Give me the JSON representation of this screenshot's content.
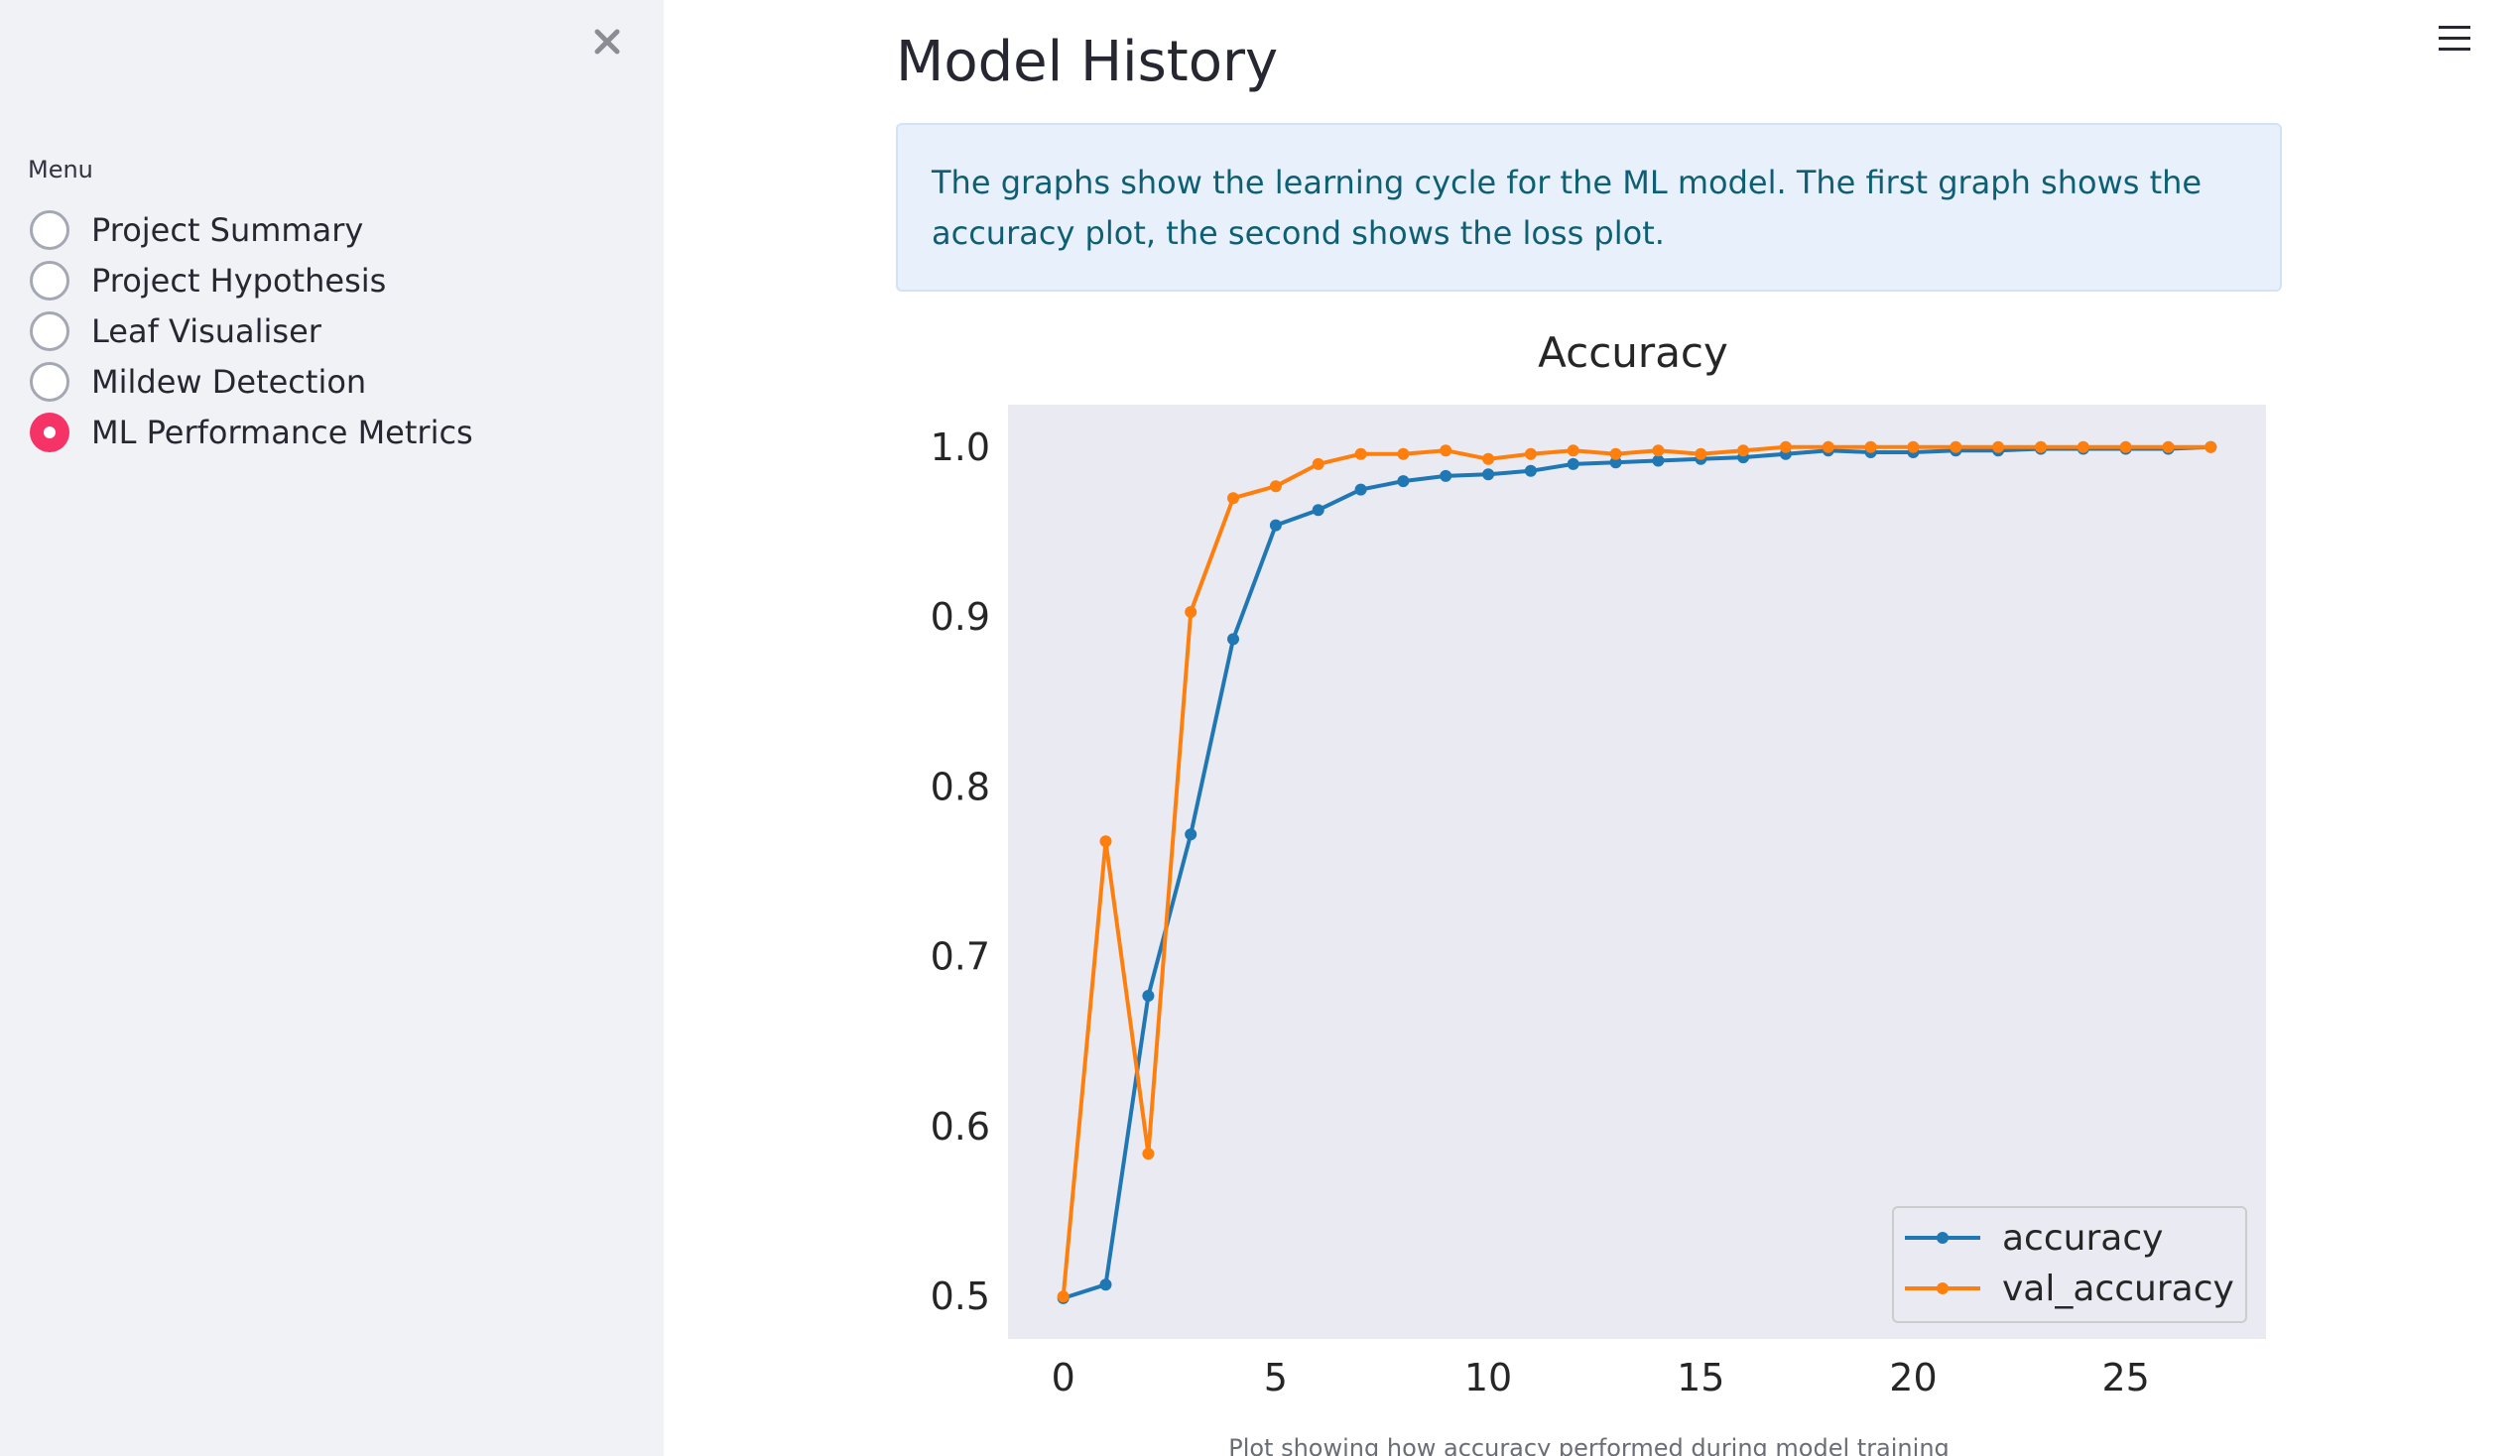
{
  "sidebar": {
    "menu_label": "Menu",
    "items": [
      {
        "label": "Project Summary",
        "selected": false
      },
      {
        "label": "Project Hypothesis",
        "selected": false
      },
      {
        "label": "Leaf Visualiser",
        "selected": false
      },
      {
        "label": "Mildew Detection",
        "selected": false
      },
      {
        "label": "ML Performance Metrics",
        "selected": true
      }
    ],
    "accent_color": "#f63366"
  },
  "main": {
    "title": "Model History",
    "info_text": "The graphs show the learning cycle for the ML model. The first graph shows the accuracy plot, the second shows the loss plot.",
    "caption": "Plot showing how accuracy performed during model training"
  },
  "icons": {
    "close": "close-icon",
    "menu": "hamburger-menu-icon"
  },
  "chart_data": {
    "type": "line",
    "title": "Accuracy",
    "xlabel": "",
    "ylabel": "",
    "xlim": [
      -1.3,
      28.3
    ],
    "ylim": [
      0.475,
      1.025
    ],
    "xticks": [
      0,
      5,
      10,
      15,
      20,
      25
    ],
    "yticks": [
      0.5,
      0.6,
      0.7,
      0.8,
      0.9,
      1.0
    ],
    "ytick_labels": [
      "0.5",
      "0.6",
      "0.7",
      "0.8",
      "0.9",
      "1.0"
    ],
    "grid": false,
    "background": "#eaeaf2",
    "legend_position": "lower-right",
    "x": [
      0,
      1,
      2,
      3,
      4,
      5,
      6,
      7,
      8,
      9,
      10,
      11,
      12,
      13,
      14,
      15,
      16,
      17,
      18,
      19,
      20,
      21,
      22,
      23,
      24,
      25,
      26,
      27
    ],
    "series": [
      {
        "name": "accuracy",
        "color": "#1f77b4",
        "values": [
          0.499,
          0.507,
          0.677,
          0.772,
          0.887,
          0.954,
          0.963,
          0.975,
          0.98,
          0.983,
          0.984,
          0.986,
          0.99,
          0.991,
          0.992,
          0.993,
          0.994,
          0.996,
          0.998,
          0.997,
          0.997,
          0.998,
          0.998,
          0.999,
          0.999,
          0.999,
          0.999,
          1.0
        ]
      },
      {
        "name": "val_accuracy",
        "color": "#ff7f0e",
        "values": [
          0.5,
          0.768,
          0.584,
          0.903,
          0.97,
          0.977,
          0.99,
          0.996,
          0.996,
          0.998,
          0.993,
          0.996,
          0.998,
          0.996,
          0.998,
          0.996,
          0.998,
          1.0,
          1.0,
          1.0,
          1.0,
          1.0,
          1.0,
          1.0,
          1.0,
          1.0,
          1.0,
          1.0
        ]
      }
    ]
  }
}
